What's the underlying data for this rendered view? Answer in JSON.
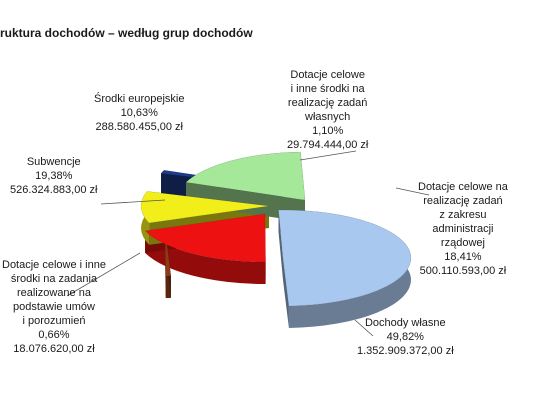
{
  "chart_data": {
    "type": "pie",
    "title": "ruktura dochodów – według grup dochodów",
    "unit": "zł",
    "slices": [
      {
        "name": "Dochody własne",
        "percent": "49,82%",
        "value": "1.352.909.372,00 zł",
        "share": 0.4982,
        "color": "#a9c8ef"
      },
      {
        "name": "Dotacje celowe i inne środki na zadania realizowane na podstawie umów i porozumień",
        "percent": "0,66%",
        "value": "18.076.620,00 zł",
        "share": 0.0066,
        "color": "#8a3d18"
      },
      {
        "name": "Subwencje",
        "percent": "19,38%",
        "value": "526.324.883,00 zł",
        "share": 0.1938,
        "color": "#ee1111"
      },
      {
        "name": "Środki europejskie",
        "percent": "10,63%",
        "value": "288.580.455,00 zł",
        "share": 0.1063,
        "color": "#f2ee1a"
      },
      {
        "name": "Dotacje celowe i inne środki na realizację zadań własnych",
        "percent": "1,10%",
        "value": "29.794.444,00 zł",
        "share": 0.011,
        "color": "#1f3c8c"
      },
      {
        "name": "Dotacje celowe na realizację zadań z zakresu administracji rządowej",
        "percent": "18,41%",
        "value": "500.110.593,00 zł",
        "share": 0.1841,
        "color": "#a6e89a"
      }
    ]
  },
  "labels": {
    "dochody_wlasne": [
      "Dochody własne",
      "49,82%",
      "1.352.909.372,00 zł"
    ],
    "dotacje_umowy": [
      "Dotacje celowe i inne",
      "środki na zadania",
      "realizowane na",
      "podstawie umów",
      "i porozumień",
      "0,66%",
      "18.076.620,00 zł"
    ],
    "subwencje": [
      "Subwencje",
      "19,38%",
      "526.324.883,00 zł"
    ],
    "srodki_europejskie": [
      "Środki europejskie",
      "10,63%",
      "288.580.455,00 zł"
    ],
    "dotacje_wlasne": [
      "Dotacje celowe",
      "i inne środki na",
      "realizację zadań",
      "własnych",
      "1,10%",
      "29.794.444,00 zł"
    ],
    "dotacje_rzadowe": [
      "Dotacje celowe na",
      "realizację zadań",
      "z zakresu",
      "administracji",
      "rządowej",
      "18,41%",
      "500.110.593,00 zł"
    ]
  }
}
